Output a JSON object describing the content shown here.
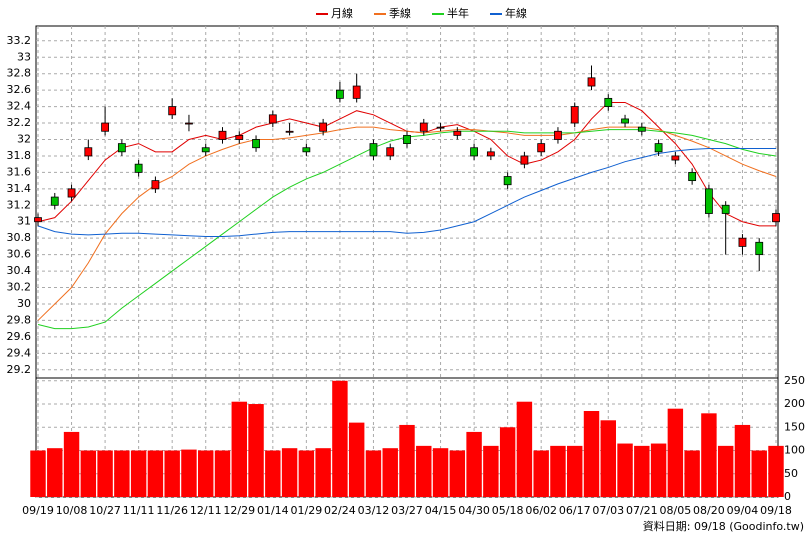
{
  "chart_data": {
    "type": "candlestick",
    "categories": [
      "09/19",
      null,
      "10/08",
      null,
      "10/27",
      null,
      "11/11",
      null,
      "11/26",
      null,
      "12/11",
      null,
      "12/29",
      null,
      "01/14",
      null,
      "01/29",
      null,
      "02/24",
      null,
      "03/12",
      null,
      "03/27",
      null,
      "04/15",
      null,
      "04/30",
      null,
      "05/18",
      null,
      "06/02",
      null,
      "06/17",
      null,
      "07/03",
      null,
      "07/21",
      null,
      "08/05",
      null,
      "08/20",
      null,
      "09/04",
      null,
      "09/18"
    ],
    "open": [
      31.0,
      31.3,
      31.3,
      31.8,
      32.1,
      31.95,
      31.7,
      31.4,
      32.3,
      32.2,
      31.9,
      32.0,
      32.0,
      32.0,
      32.2,
      32.1,
      31.9,
      32.1,
      32.6,
      32.5,
      31.95,
      31.8,
      32.05,
      32.1,
      32.15,
      32.05,
      31.9,
      31.8,
      31.55,
      31.7,
      31.85,
      32.0,
      32.2,
      32.65,
      32.5,
      32.25,
      32.15,
      31.95,
      31.75,
      31.6,
      31.4,
      31.2,
      30.7,
      30.75,
      31.0
    ],
    "high": [
      31.1,
      31.35,
      31.45,
      32.0,
      32.4,
      32.0,
      31.75,
      31.55,
      32.5,
      32.3,
      31.95,
      32.15,
      32.1,
      32.05,
      32.35,
      32.2,
      31.95,
      32.25,
      32.7,
      32.8,
      32.0,
      31.95,
      32.1,
      32.25,
      32.2,
      32.15,
      31.95,
      31.9,
      31.6,
      31.85,
      32.0,
      32.15,
      32.45,
      32.9,
      32.55,
      32.3,
      32.2,
      32.0,
      31.85,
      31.65,
      31.45,
      31.25,
      30.85,
      30.8,
      31.15
    ],
    "low": [
      30.95,
      31.15,
      31.25,
      31.75,
      32.05,
      31.8,
      31.55,
      31.35,
      32.25,
      32.1,
      31.8,
      31.95,
      31.95,
      31.85,
      32.15,
      32.05,
      31.8,
      32.05,
      32.45,
      32.45,
      31.75,
      31.75,
      31.9,
      32.05,
      32.1,
      32.0,
      31.75,
      31.75,
      31.4,
      31.65,
      31.8,
      31.95,
      32.15,
      32.6,
      32.35,
      32.15,
      32.05,
      31.8,
      31.7,
      31.45,
      31.05,
      30.6,
      30.6,
      30.4,
      30.95
    ],
    "close": [
      31.05,
      31.2,
      31.4,
      31.9,
      32.2,
      31.85,
      31.6,
      31.5,
      32.4,
      32.2,
      31.85,
      32.1,
      32.05,
      31.9,
      32.3,
      32.1,
      31.85,
      32.2,
      32.5,
      32.65,
      31.8,
      31.9,
      31.95,
      32.2,
      32.15,
      32.1,
      31.8,
      31.85,
      31.45,
      31.8,
      31.95,
      32.1,
      32.4,
      32.75,
      32.4,
      32.2,
      32.1,
      31.85,
      31.8,
      31.5,
      31.1,
      31.1,
      30.8,
      30.6,
      31.1
    ],
    "up_color": "#ff0000",
    "down_color": "#00c000",
    "series": [
      {
        "name": "月線",
        "color": "#e00000",
        "values": [
          31.0,
          31.05,
          31.25,
          31.5,
          31.75,
          31.9,
          31.95,
          31.85,
          31.85,
          32.0,
          32.05,
          32.0,
          32.05,
          32.15,
          32.2,
          32.25,
          32.2,
          32.15,
          32.25,
          32.35,
          32.3,
          32.2,
          32.1,
          32.08,
          32.15,
          32.18,
          32.1,
          32.0,
          31.8,
          31.7,
          31.75,
          31.85,
          32.0,
          32.25,
          32.45,
          32.45,
          32.35,
          32.15,
          31.95,
          31.7,
          31.35,
          31.1,
          31.0,
          30.95,
          30.95
        ]
      },
      {
        "name": "季線",
        "color": "#f07020",
        "values": [
          29.8,
          30.0,
          30.2,
          30.5,
          30.85,
          31.1,
          31.3,
          31.45,
          31.55,
          31.7,
          31.8,
          31.88,
          31.95,
          32.0,
          32.0,
          32.02,
          32.05,
          32.08,
          32.12,
          32.15,
          32.15,
          32.12,
          32.1,
          32.08,
          32.1,
          32.12,
          32.12,
          32.1,
          32.08,
          32.05,
          32.05,
          32.05,
          32.08,
          32.12,
          32.15,
          32.15,
          32.15,
          32.12,
          32.05,
          31.98,
          31.9,
          31.8,
          31.7,
          31.62,
          31.55
        ]
      },
      {
        "name": "半年",
        "color": "#20d020",
        "values": [
          29.75,
          29.7,
          29.7,
          29.72,
          29.78,
          29.95,
          30.1,
          30.25,
          30.4,
          30.55,
          30.7,
          30.85,
          31.0,
          31.15,
          31.3,
          31.42,
          31.52,
          31.6,
          31.7,
          31.8,
          31.9,
          31.98,
          32.03,
          32.05,
          32.08,
          32.1,
          32.1,
          32.1,
          32.1,
          32.08,
          32.08,
          32.08,
          32.08,
          32.1,
          32.12,
          32.12,
          32.12,
          32.1,
          32.08,
          32.05,
          32.0,
          31.95,
          31.88,
          31.83,
          31.8
        ]
      },
      {
        "name": "年線",
        "color": "#1060d0",
        "values": [
          30.95,
          30.88,
          30.85,
          30.84,
          30.85,
          30.86,
          30.86,
          30.85,
          30.84,
          30.83,
          30.82,
          30.82,
          30.83,
          30.85,
          30.87,
          30.88,
          30.88,
          30.88,
          30.88,
          30.88,
          30.88,
          30.88,
          30.86,
          30.87,
          30.9,
          30.95,
          31.0,
          31.1,
          31.2,
          31.3,
          31.38,
          31.46,
          31.53,
          31.6,
          31.66,
          31.73,
          31.78,
          31.83,
          31.86,
          31.88,
          31.89,
          31.89,
          31.89,
          31.89,
          31.89
        ]
      }
    ],
    "ylim": [
      29.1,
      33.38
    ],
    "yticks": [
      29.2,
      29.4,
      29.6,
      29.8,
      30,
      30.2,
      30.4,
      30.6,
      30.8,
      31,
      31.2,
      31.4,
      31.6,
      31.8,
      32,
      32.2,
      32.4,
      32.6,
      32.8,
      33,
      33.2
    ],
    "volume": {
      "color": "#ff0000",
      "values": [
        100,
        105,
        140,
        100,
        100,
        100,
        100,
        100,
        100,
        102,
        100,
        100,
        205,
        200,
        100,
        105,
        100,
        105,
        250,
        160,
        100,
        105,
        155,
        110,
        105,
        100,
        140,
        110,
        150,
        205,
        100,
        110,
        110,
        185,
        165,
        115,
        110,
        115,
        190,
        100,
        180,
        110,
        155,
        100,
        110
      ],
      "ylim": [
        0,
        256
      ],
      "yticks": [
        0,
        50,
        100,
        150,
        200,
        250
      ]
    },
    "grid": true,
    "footer": "資料日期: 09/18 (Goodinfo.tw)"
  }
}
